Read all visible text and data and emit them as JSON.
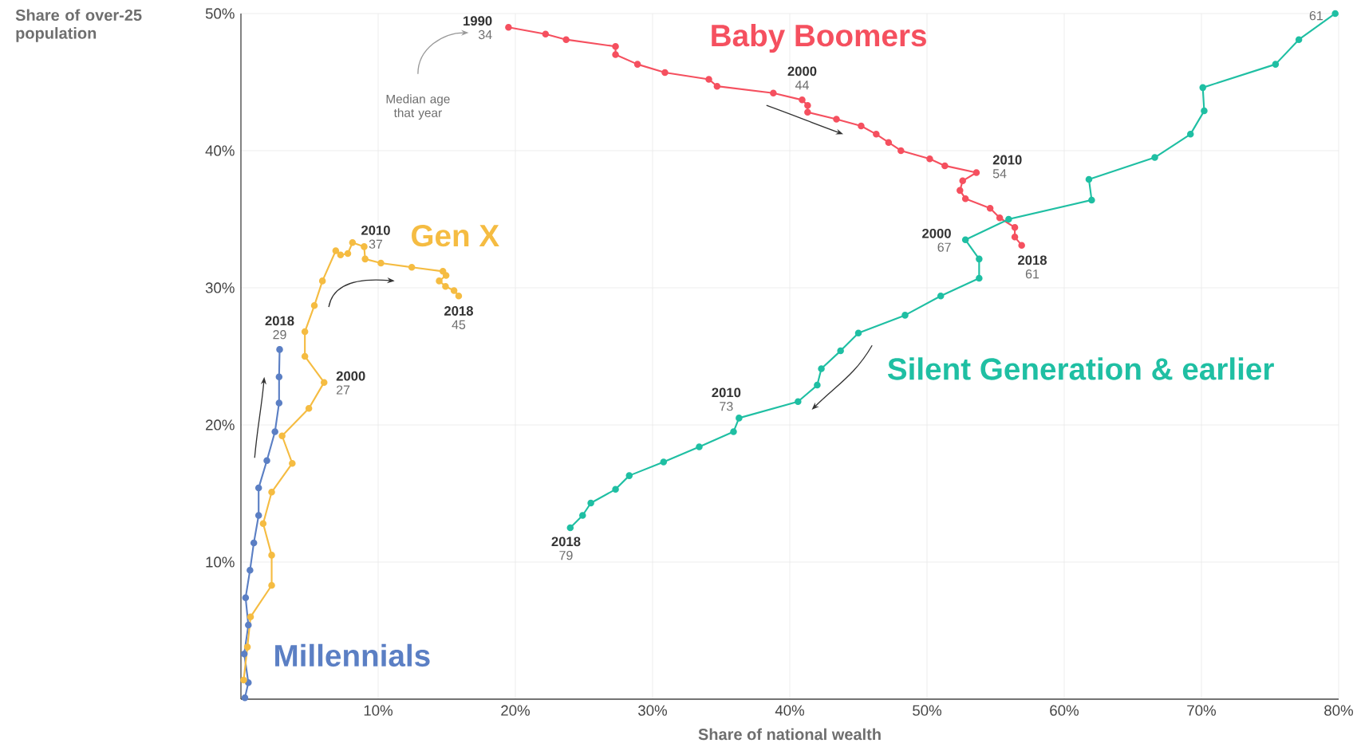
{
  "chart_data": {
    "type": "line",
    "xlabel": "Share of national wealth",
    "ylabel": "Share of over-25 population",
    "xlim": [
      0,
      80
    ],
    "ylim": [
      0,
      50
    ],
    "xticks": [
      {
        "value": 10,
        "label": "10%"
      },
      {
        "value": 20,
        "label": "20%"
      },
      {
        "value": 30,
        "label": "30%"
      },
      {
        "value": 40,
        "label": "40%"
      },
      {
        "value": 50,
        "label": "50%"
      },
      {
        "value": 60,
        "label": "60%"
      },
      {
        "value": 70,
        "label": "70%"
      },
      {
        "value": 80,
        "label": "80%"
      }
    ],
    "yticks": [
      {
        "value": 10,
        "label": "10%"
      },
      {
        "value": 20,
        "label": "20%"
      },
      {
        "value": 30,
        "label": "30%"
      },
      {
        "value": 40,
        "label": "40%"
      },
      {
        "value": 50,
        "label": "50%"
      }
    ],
    "grid": true,
    "marker": "circle",
    "line_style": "solid",
    "series": [
      {
        "name": "Millennials",
        "color": "#5b7fc4",
        "x": [
          0.29,
          0.54,
          0.24,
          0.54,
          0.34,
          0.66,
          0.94,
          1.29,
          1.29,
          1.89,
          2.48,
          2.78,
          2.78,
          2.82
        ],
        "values": [
          0.1,
          1.2,
          3.3,
          5.4,
          7.4,
          9.4,
          11.4,
          13.4,
          15.4,
          17.4,
          19.5,
          21.6,
          23.5,
          25.5
        ]
      },
      {
        "name": "Gen X",
        "color": "#f5bc42",
        "x": [
          0.2,
          0.47,
          0.7,
          2.24,
          2.24,
          1.62,
          2.24,
          3.74,
          3.0,
          4.95,
          6.06,
          4.66,
          4.66,
          5.35,
          5.94,
          6.91,
          7.26,
          7.79,
          8.13,
          8.98,
          9.05,
          10.2,
          12.45,
          14.72,
          14.95,
          14.45,
          14.91,
          15.53,
          15.87
        ],
        "values": [
          1.4,
          3.8,
          6.0,
          8.3,
          10.5,
          12.8,
          15.1,
          17.2,
          19.2,
          21.2,
          23.1,
          25.0,
          26.8,
          28.7,
          30.5,
          32.7,
          32.4,
          32.5,
          33.3,
          33.0,
          32.1,
          31.8,
          31.5,
          31.2,
          30.9,
          30.5,
          30.1,
          29.8,
          29.4
        ]
      },
      {
        "name": "Baby Boomers",
        "color": "#f5505f",
        "x": [
          19.5,
          22.2,
          23.7,
          27.3,
          27.3,
          28.9,
          30.9,
          34.1,
          34.7,
          38.8,
          40.9,
          41.3,
          41.3,
          43.4,
          45.2,
          46.3,
          47.2,
          48.1,
          50.2,
          51.3,
          53.6,
          52.6,
          52.4,
          52.8,
          54.6,
          55.3,
          56.4,
          56.4,
          56.9
        ],
        "values": [
          49.0,
          48.5,
          48.1,
          47.6,
          47.0,
          46.3,
          45.7,
          45.2,
          44.7,
          44.2,
          43.7,
          43.3,
          42.8,
          42.3,
          41.8,
          41.2,
          40.6,
          40.0,
          39.4,
          38.9,
          38.4,
          37.8,
          37.1,
          36.5,
          35.8,
          35.1,
          34.4,
          33.7,
          33.1
        ]
      },
      {
        "name": "Silent Generation & earlier",
        "color": "#1fbfa3",
        "x": [
          79.75,
          77.1,
          75.4,
          70.1,
          70.2,
          69.2,
          66.6,
          61.8,
          62.0,
          55.95,
          52.8,
          53.8,
          53.8,
          51.0,
          48.4,
          45.0,
          43.7,
          42.3,
          42.0,
          40.6,
          36.3,
          35.9,
          33.4,
          30.8,
          28.3,
          27.3,
          25.5,
          24.9,
          24.0
        ],
        "values": [
          50.0,
          48.1,
          46.3,
          44.6,
          42.9,
          41.2,
          39.5,
          37.9,
          36.4,
          35.0,
          33.5,
          32.1,
          30.7,
          29.4,
          28.0,
          26.7,
          25.4,
          24.1,
          22.9,
          21.7,
          20.5,
          19.5,
          18.4,
          17.3,
          16.3,
          15.3,
          14.3,
          13.4,
          12.5
        ]
      }
    ],
    "annotations": [
      {
        "text": "1990",
        "x": 19.5,
        "y": 49.0
      },
      {
        "text": "34",
        "x": 19.5,
        "y": 49.0
      },
      {
        "text": "2000",
        "x": 40.9,
        "y": 43.7
      },
      {
        "text": "44",
        "x": 40.9,
        "y": 43.7
      },
      {
        "text": "2010",
        "x": 53.6,
        "y": 38.4
      },
      {
        "text": "54",
        "x": 53.6,
        "y": 38.4
      },
      {
        "text": "2018",
        "x": 56.9,
        "y": 33.1
      },
      {
        "text": "61",
        "x": 56.9,
        "y": 33.1
      },
      {
        "text": "2000",
        "x": 52.8,
        "y": 33.5
      },
      {
        "text": "67",
        "x": 52.8,
        "y": 33.5
      },
      {
        "text": "2010",
        "x": 36.3,
        "y": 20.5
      },
      {
        "text": "73",
        "x": 36.3,
        "y": 20.5
      },
      {
        "text": "2018",
        "x": 24.0,
        "y": 12.5
      },
      {
        "text": "79",
        "x": 24.0,
        "y": 12.5
      },
      {
        "text": "61",
        "x": 79.75,
        "y": 50.0
      },
      {
        "text": "2000",
        "x": 6.06,
        "y": 23.1
      },
      {
        "text": "27",
        "x": 6.06,
        "y": 23.1
      },
      {
        "text": "2010",
        "x": 9.05,
        "y": 32.1
      },
      {
        "text": "37",
        "x": 9.05,
        "y": 32.1
      },
      {
        "text": "2018",
        "x": 15.87,
        "y": 29.4
      },
      {
        "text": "45",
        "x": 15.87,
        "y": 29.4
      },
      {
        "text": "2018",
        "x": 2.82,
        "y": 25.5
      },
      {
        "text": "29",
        "x": 2.82,
        "y": 25.5
      },
      "Median age that year"
    ]
  }
}
